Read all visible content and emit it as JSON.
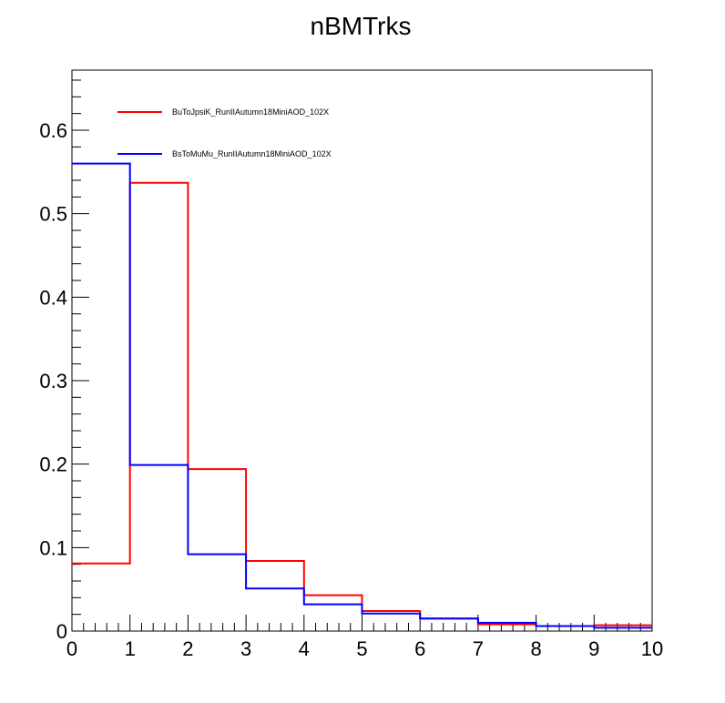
{
  "chart_data": {
    "type": "line",
    "title": "nBMTrks",
    "xlim": [
      0,
      10
    ],
    "ylim": [
      0,
      0.672
    ],
    "x_ticks": [
      "0",
      "1",
      "2",
      "3",
      "4",
      "5",
      "6",
      "7",
      "8",
      "9",
      "10"
    ],
    "y_ticks": [
      "0",
      "0.1",
      "0.2",
      "0.3",
      "0.4",
      "0.5",
      "0.6"
    ],
    "grid": false,
    "legend_position": "top-left",
    "bin_edges": [
      0,
      1,
      2,
      3,
      4,
      5,
      6,
      7,
      8,
      9,
      10
    ],
    "series": [
      {
        "name": "BuToJpsiK_RunIIAutumn18MiniAOD_102X",
        "color": "#ff0000",
        "values": [
          0.081,
          0.537,
          0.194,
          0.084,
          0.043,
          0.024,
          0.015,
          0.008,
          0.006,
          0.007
        ]
      },
      {
        "name": "BsToMuMu_RunIIAutumn18MiniAOD_102X",
        "color": "#0000ff",
        "values": [
          0.56,
          0.199,
          0.092,
          0.051,
          0.032,
          0.021,
          0.015,
          0.01,
          0.006,
          0.004
        ]
      }
    ]
  }
}
